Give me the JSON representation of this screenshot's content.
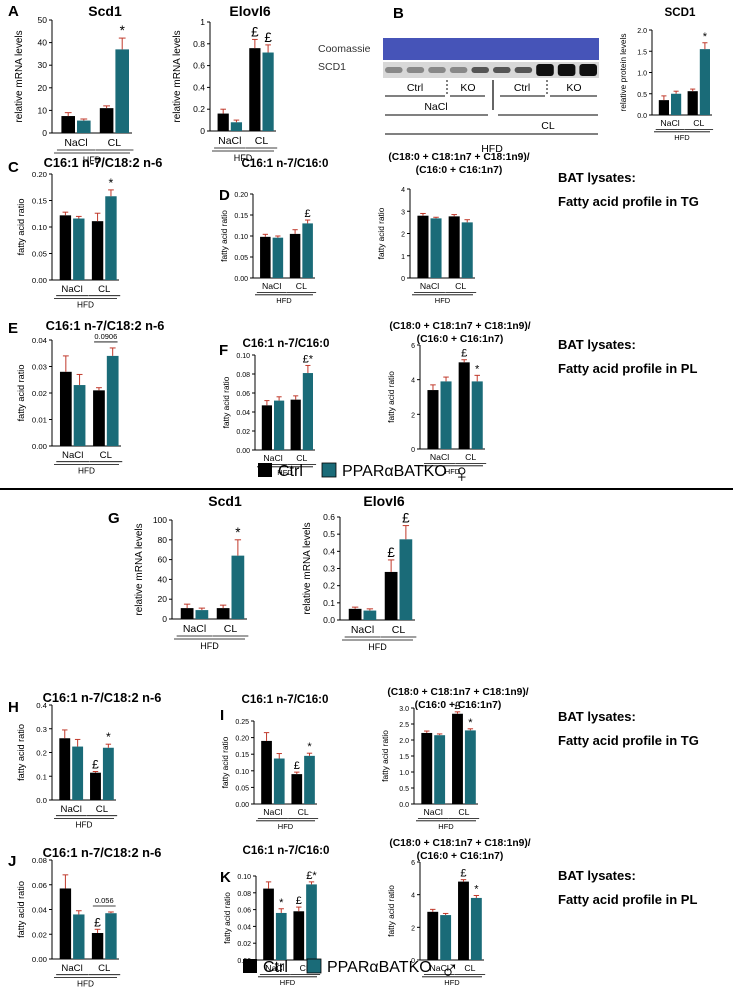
{
  "colors": {
    "ctrl": "#000000",
    "ko": "#1a6b78",
    "error": "#c0392b",
    "blot_blue": "#4654b8"
  },
  "legend": {
    "ctrl": "Ctrl",
    "ko": "PPARαBATKO",
    "female_symbol": "♀",
    "male_symbol": "♂"
  },
  "side_labels": {
    "line1": "BAT lysates:",
    "tg": "Fatty acid profile in TG",
    "pl": "Fatty acid profile in PL"
  },
  "western_blot": {
    "panel_label": "B",
    "row_labels": [
      "Coomassie",
      "SCD1"
    ],
    "group_labels": [
      "Ctrl",
      "KO",
      "Ctrl",
      "KO"
    ],
    "treatments": [
      "NaCl",
      "CL"
    ],
    "diet": "HFD"
  },
  "chart_data": [
    {
      "id": "A1",
      "panel": "A",
      "type": "bar",
      "title": "Scd1",
      "ylabel": "relative mRNA levels",
      "ylim": [
        0,
        50
      ],
      "yticks": [
        "0",
        "10",
        "20",
        "30",
        "40",
        "50"
      ],
      "categories": [
        "NaCl",
        "CL"
      ],
      "xlabel": "HFD",
      "series": [
        {
          "name": "Ctrl",
          "values": [
            7.5,
            11
          ],
          "errors": [
            1.5,
            1
          ]
        },
        {
          "name": "PPARαBATKO",
          "values": [
            5.5,
            37
          ],
          "errors": [
            0.7,
            5
          ]
        }
      ],
      "annotations": [
        {
          "cat": 1,
          "series": 1,
          "text": "*"
        }
      ]
    },
    {
      "id": "A2",
      "panel": "",
      "type": "bar",
      "title": "Elovl6",
      "ylabel": "relative mRNA levels",
      "ylim": [
        0,
        1
      ],
      "yticks": [
        "0",
        "0.2",
        "0.4",
        "0.6",
        "0.8",
        "1"
      ],
      "categories": [
        "NaCl",
        "CL"
      ],
      "xlabel": "HFD",
      "series": [
        {
          "name": "Ctrl",
          "values": [
            0.16,
            0.76
          ],
          "errors": [
            0.04,
            0.08
          ]
        },
        {
          "name": "PPARαBATKO",
          "values": [
            0.08,
            0.72
          ],
          "errors": [
            0.02,
            0.07
          ]
        }
      ],
      "annotations": [
        {
          "cat": 1,
          "series": 0,
          "text": "£"
        },
        {
          "cat": 1,
          "series": 1,
          "text": "£"
        }
      ]
    },
    {
      "id": "B2",
      "panel": "",
      "type": "bar",
      "title": "SCD1",
      "ylabel": "relative protein levels",
      "ylim": [
        0,
        2
      ],
      "yticks": [
        "0.0",
        "0.5",
        "1.0",
        "1.5",
        "2.0"
      ],
      "categories": [
        "NaCl",
        "CL"
      ],
      "xlabel": "HFD",
      "series": [
        {
          "name": "Ctrl",
          "values": [
            0.35,
            0.56
          ],
          "errors": [
            0.1,
            0.05
          ]
        },
        {
          "name": "PPARαBATKO",
          "values": [
            0.5,
            1.55
          ],
          "errors": [
            0.06,
            0.15
          ]
        }
      ],
      "annotations": [
        {
          "cat": 1,
          "series": 1,
          "text": "*"
        }
      ]
    },
    {
      "id": "C",
      "panel": "C",
      "type": "bar",
      "title": "C16:1 n-7/C18:2 n-6",
      "ylabel": "fatty acid ratio",
      "ylim": [
        0,
        0.2
      ],
      "yticks": [
        "0.00",
        "0.05",
        "0.10",
        "0.15",
        "0.20"
      ],
      "categories": [
        "NaCl",
        "CL"
      ],
      "xlabel": "HFD",
      "series": [
        {
          "name": "Ctrl",
          "values": [
            0.122,
            0.111
          ],
          "errors": [
            0.006,
            0.015
          ]
        },
        {
          "name": "PPARαBATKO",
          "values": [
            0.116,
            0.158
          ],
          "errors": [
            0.004,
            0.012
          ]
        }
      ],
      "annotations": [
        {
          "cat": 1,
          "series": 1,
          "text": "*"
        }
      ]
    },
    {
      "id": "D1",
      "panel": "D",
      "type": "bar",
      "title": "C16:1 n-7/C16:0",
      "ylabel": "fatty acid ratio",
      "ylim": [
        0,
        0.2
      ],
      "yticks": [
        "0.00",
        "0.05",
        "0.10",
        "0.15",
        "0.20"
      ],
      "categories": [
        "NaCl",
        "CL"
      ],
      "xlabel": "HFD",
      "series": [
        {
          "name": "Ctrl",
          "values": [
            0.098,
            0.105
          ],
          "errors": [
            0.006,
            0.01
          ]
        },
        {
          "name": "PPARαBATKO",
          "values": [
            0.096,
            0.13
          ],
          "errors": [
            0.004,
            0.008
          ]
        }
      ],
      "annotations": [
        {
          "cat": 1,
          "series": 1,
          "text": "£"
        }
      ]
    },
    {
      "id": "D2",
      "panel": "",
      "type": "bar",
      "title": "(C18:0 + C18:1n7 + C18:1n9)/ (C16:0 + C16:1n7)",
      "ylabel": "fatty acid ratio",
      "ylim": [
        0,
        4
      ],
      "yticks": [
        "0",
        "1",
        "2",
        "3",
        "4"
      ],
      "categories": [
        "NaCl",
        "CL"
      ],
      "xlabel": "HFD",
      "series": [
        {
          "name": "Ctrl",
          "values": [
            2.8,
            2.77
          ],
          "errors": [
            0.1,
            0.08
          ]
        },
        {
          "name": "PPARαBATKO",
          "values": [
            2.68,
            2.5
          ],
          "errors": [
            0.05,
            0.12
          ]
        }
      ],
      "annotations": []
    },
    {
      "id": "E",
      "panel": "E",
      "type": "bar",
      "title": "C16:1 n-7/C18:2 n-6",
      "ylabel": "fatty acid ratio",
      "ylim": [
        0,
        0.04
      ],
      "yticks": [
        "0.00",
        "0.01",
        "0.02",
        "0.03",
        "0.04"
      ],
      "categories": [
        "NaCl",
        "CL"
      ],
      "xlabel": "HFD",
      "series": [
        {
          "name": "Ctrl",
          "values": [
            0.028,
            0.021
          ],
          "errors": [
            0.006,
            0.001
          ]
        },
        {
          "name": "PPARαBATKO",
          "values": [
            0.023,
            0.034
          ],
          "errors": [
            0.004,
            0.003
          ]
        }
      ],
      "annotations": [],
      "pvalue": {
        "text": "0.0906",
        "cat": 1
      }
    },
    {
      "id": "F1",
      "panel": "F",
      "type": "bar",
      "title": "C16:1 n-7/C16:0",
      "ylabel": "fatty acid ratio",
      "ylim": [
        0,
        0.1
      ],
      "yticks": [
        "0.00",
        "0.02",
        "0.04",
        "0.06",
        "0.08",
        "0.10"
      ],
      "categories": [
        "NaCl",
        "CL"
      ],
      "xlabel": "HFD",
      "series": [
        {
          "name": "Ctrl",
          "values": [
            0.047,
            0.053
          ],
          "errors": [
            0.005,
            0.004
          ]
        },
        {
          "name": "PPARαBATKO",
          "values": [
            0.052,
            0.081
          ],
          "errors": [
            0.004,
            0.008
          ]
        }
      ],
      "annotations": [
        {
          "cat": 1,
          "series": 1,
          "text": "£*"
        }
      ]
    },
    {
      "id": "F2",
      "panel": "",
      "type": "bar",
      "title": "(C18:0 + C18:1n7 + C18:1n9)/ (C16:0 + C16:1n7)",
      "ylabel": "fatty acid ratio",
      "ylim": [
        0,
        6
      ],
      "yticks": [
        "0",
        "2",
        "4",
        "6"
      ],
      "categories": [
        "NaCl",
        "CL"
      ],
      "xlabel": "HFD",
      "series": [
        {
          "name": "Ctrl",
          "values": [
            3.4,
            5.0
          ],
          "errors": [
            0.3,
            0.15
          ]
        },
        {
          "name": "PPARαBATKO",
          "values": [
            3.9,
            3.9
          ],
          "errors": [
            0.25,
            0.35
          ]
        }
      ],
      "annotations": [
        {
          "cat": 1,
          "series": 0,
          "text": "£"
        },
        {
          "cat": 1,
          "series": 1,
          "text": "*"
        }
      ]
    },
    {
      "id": "G1",
      "panel": "G",
      "type": "bar",
      "title": "Scd1",
      "ylabel": "relative mRNA levels",
      "ylim": [
        0,
        100
      ],
      "yticks": [
        "0",
        "20",
        "40",
        "60",
        "80",
        "100"
      ],
      "categories": [
        "NaCl",
        "CL"
      ],
      "xlabel": "HFD",
      "series": [
        {
          "name": "Ctrl",
          "values": [
            11,
            11
          ],
          "errors": [
            4,
            3
          ]
        },
        {
          "name": "PPARαBATKO",
          "values": [
            9,
            64
          ],
          "errors": [
            2,
            16
          ]
        }
      ],
      "annotations": [
        {
          "cat": 1,
          "series": 1,
          "text": "*"
        }
      ]
    },
    {
      "id": "G2",
      "panel": "",
      "type": "bar",
      "title": "Elovl6",
      "ylabel": "relative mRNA levels",
      "ylim": [
        0,
        0.6
      ],
      "yticks": [
        "0.0",
        "0.1",
        "0.2",
        "0.3",
        "0.4",
        "0.5",
        "0.6"
      ],
      "categories": [
        "NaCl",
        "CL"
      ],
      "xlabel": "HFD",
      "series": [
        {
          "name": "Ctrl",
          "values": [
            0.065,
            0.28
          ],
          "errors": [
            0.01,
            0.07
          ]
        },
        {
          "name": "PPARαBATKO",
          "values": [
            0.055,
            0.47
          ],
          "errors": [
            0.01,
            0.08
          ]
        }
      ],
      "annotations": [
        {
          "cat": 1,
          "series": 0,
          "text": "£"
        },
        {
          "cat": 1,
          "series": 1,
          "text": "£"
        }
      ]
    },
    {
      "id": "H",
      "panel": "H",
      "type": "bar",
      "title": "C16:1 n-7/C18:2 n-6",
      "ylabel": "fatty acid ratio",
      "ylim": [
        0,
        0.4
      ],
      "yticks": [
        "0.0",
        "0.1",
        "0.2",
        "0.3",
        "0.4"
      ],
      "categories": [
        "NaCl",
        "CL"
      ],
      "xlabel": "HFD",
      "series": [
        {
          "name": "Ctrl",
          "values": [
            0.26,
            0.115
          ],
          "errors": [
            0.035,
            0.005
          ]
        },
        {
          "name": "PPARαBATKO",
          "values": [
            0.225,
            0.22
          ],
          "errors": [
            0.03,
            0.015
          ]
        }
      ],
      "annotations": [
        {
          "cat": 1,
          "series": 0,
          "text": "£"
        },
        {
          "cat": 1,
          "series": 1,
          "text": "*"
        }
      ]
    },
    {
      "id": "I1",
      "panel": "I",
      "type": "bar",
      "title": "C16:1 n-7/C16:0",
      "ylabel": "fatty acid ratio",
      "ylim": [
        0,
        0.25
      ],
      "yticks": [
        "0.00",
        "0.05",
        "0.10",
        "0.15",
        "0.20",
        "0.25"
      ],
      "categories": [
        "NaCl",
        "CL"
      ],
      "xlabel": "HFD",
      "series": [
        {
          "name": "Ctrl",
          "values": [
            0.19,
            0.09
          ],
          "errors": [
            0.025,
            0.006
          ]
        },
        {
          "name": "PPARαBATKO",
          "values": [
            0.137,
            0.145
          ],
          "errors": [
            0.015,
            0.008
          ]
        }
      ],
      "annotations": [
        {
          "cat": 1,
          "series": 0,
          "text": "£"
        },
        {
          "cat": 1,
          "series": 1,
          "text": "*"
        }
      ]
    },
    {
      "id": "I2",
      "panel": "",
      "type": "bar",
      "title": "(C18:0 + C18:1n7 + C18:1n9)/ (C16:0 + C16:1n7)",
      "ylabel": "fatty acid ratio",
      "ylim": [
        0,
        3
      ],
      "yticks": [
        "0.0",
        "0.5",
        "1.0",
        "1.5",
        "2.0",
        "2.5",
        "3.0"
      ],
      "categories": [
        "NaCl",
        "CL"
      ],
      "xlabel": "HFD",
      "series": [
        {
          "name": "Ctrl",
          "values": [
            2.22,
            2.82
          ],
          "errors": [
            0.06,
            0.06
          ]
        },
        {
          "name": "PPARαBATKO",
          "values": [
            2.15,
            2.3
          ],
          "errors": [
            0.04,
            0.05
          ]
        }
      ],
      "annotations": [
        {
          "cat": 1,
          "series": 0,
          "text": "£"
        },
        {
          "cat": 1,
          "series": 1,
          "text": "*"
        }
      ]
    },
    {
      "id": "J",
      "panel": "J",
      "type": "bar",
      "title": "C16:1 n-7/C18:2 n-6",
      "ylabel": "fatty acid ratio",
      "ylim": [
        0,
        0.08
      ],
      "yticks": [
        "0.00",
        "0.02",
        "0.04",
        "0.06",
        "0.08"
      ],
      "categories": [
        "NaCl",
        "CL"
      ],
      "xlabel": "HFD",
      "series": [
        {
          "name": "Ctrl",
          "values": [
            0.057,
            0.021
          ],
          "errors": [
            0.011,
            0.003
          ]
        },
        {
          "name": "PPARαBATKO",
          "values": [
            0.036,
            0.037
          ],
          "errors": [
            0.003,
            0.001
          ]
        }
      ],
      "annotations": [
        {
          "cat": 1,
          "series": 0,
          "text": "£"
        }
      ],
      "pvalue": {
        "text": "0.056",
        "cat": 1
      }
    },
    {
      "id": "K1",
      "panel": "K",
      "type": "bar",
      "title": "C16:1 n-7/C16:0",
      "ylabel": "fatty acid ratio",
      "ylim": [
        0,
        0.1
      ],
      "yticks": [
        "0.00",
        "0.02",
        "0.04",
        "0.06",
        "0.08",
        "0.10"
      ],
      "categories": [
        "NaCl",
        "CL"
      ],
      "xlabel": "HFD",
      "series": [
        {
          "name": "Ctrl",
          "values": [
            0.085,
            0.058
          ],
          "errors": [
            0.008,
            0.005
          ]
        },
        {
          "name": "PPARαBATKO",
          "values": [
            0.056,
            0.09
          ],
          "errors": [
            0.005,
            0.003
          ]
        }
      ],
      "annotations": [
        {
          "cat": 0,
          "series": 1,
          "text": "*"
        },
        {
          "cat": 1,
          "series": 0,
          "text": "£"
        },
        {
          "cat": 1,
          "series": 1,
          "text": "£*"
        }
      ]
    },
    {
      "id": "K2",
      "panel": "",
      "type": "bar",
      "title": "(C18:0 + C18:1n7 + C18:1n9)/ (C16:0 + C16:1n7)",
      "ylabel": "fatty acid ratio",
      "ylim": [
        0,
        6
      ],
      "yticks": [
        "0",
        "2",
        "4",
        "6"
      ],
      "categories": [
        "NaCl",
        "CL"
      ],
      "xlabel": "HFD",
      "series": [
        {
          "name": "Ctrl",
          "values": [
            2.95,
            4.8
          ],
          "errors": [
            0.15,
            0.12
          ]
        },
        {
          "name": "PPARαBATKO",
          "values": [
            2.75,
            3.8
          ],
          "errors": [
            0.1,
            0.15
          ]
        }
      ],
      "annotations": [
        {
          "cat": 1,
          "series": 0,
          "text": "£"
        },
        {
          "cat": 1,
          "series": 1,
          "text": "*"
        }
      ]
    }
  ]
}
